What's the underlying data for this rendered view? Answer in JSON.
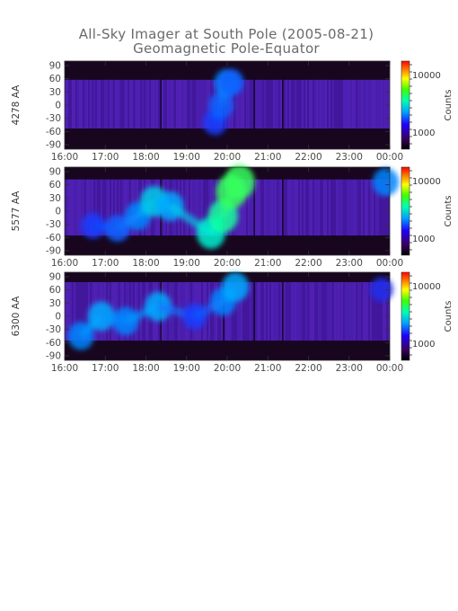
{
  "title": "All-Sky Imager at South Pole (2005-08-21)",
  "subtitle": "Geomagnetic Pole-Equator",
  "colorbar_label": "Counts",
  "colorbar_ticks": [
    "10000",
    "1000"
  ],
  "x_tick_labels": [
    "16:00",
    "17:00",
    "18:00",
    "19:00",
    "20:00",
    "21:00",
    "22:00",
    "23:00",
    "00:00"
  ],
  "y_tick_labels": [
    "90",
    "60",
    "30",
    "0",
    "-30",
    "-60",
    "-90"
  ],
  "chart_data": [
    {
      "type": "heatmap",
      "ylabel": "4278 AA",
      "x_range": [
        "16:00",
        "00:00"
      ],
      "ylim": [
        -90,
        90
      ],
      "colorbar": {
        "label": "Counts",
        "scale": "log",
        "ticks": [
          1000,
          10000
        ]
      },
      "band_edges": [
        {
          "time": 16.0,
          "upper": 52,
          "lower": -48
        },
        {
          "time": 20.0,
          "upper": 52,
          "lower": -48
        },
        {
          "time": 24.0,
          "upper": 52,
          "lower": -48
        }
      ],
      "features": [
        {
          "time": 19.7,
          "lat": -35,
          "intensity": 0.45
        },
        {
          "time": 19.85,
          "lat": 0,
          "intensity": 0.5
        },
        {
          "time": 20.0,
          "lat": 45,
          "intensity": 0.55
        },
        {
          "time": 20.1,
          "lat": 60,
          "intensity": 0.5
        }
      ]
    },
    {
      "type": "heatmap",
      "ylabel": "5577 AA",
      "x_range": [
        "16:00",
        "00:00"
      ],
      "ylim": [
        -90,
        90
      ],
      "colorbar": {
        "label": "Counts",
        "scale": "log",
        "ticks": [
          1000,
          10000
        ]
      },
      "band_edges": [
        {
          "time": 16.0,
          "upper": 65,
          "lower": -50
        },
        {
          "time": 24.0,
          "upper": 65,
          "lower": -50
        }
      ],
      "features": [
        {
          "time": 16.7,
          "lat": -30,
          "intensity": 0.45
        },
        {
          "time": 17.3,
          "lat": -35,
          "intensity": 0.5
        },
        {
          "time": 17.8,
          "lat": -10,
          "intensity": 0.55
        },
        {
          "time": 18.2,
          "lat": 20,
          "intensity": 0.65
        },
        {
          "time": 18.6,
          "lat": 10,
          "intensity": 0.6
        },
        {
          "time": 19.6,
          "lat": -45,
          "intensity": 0.7
        },
        {
          "time": 19.9,
          "lat": -10,
          "intensity": 0.75
        },
        {
          "time": 20.1,
          "lat": 40,
          "intensity": 0.8
        },
        {
          "time": 20.3,
          "lat": 60,
          "intensity": 0.8
        },
        {
          "time": 23.9,
          "lat": 60,
          "intensity": 0.55
        }
      ]
    },
    {
      "type": "heatmap",
      "ylabel": "6300 AA",
      "x_range": [
        "16:00",
        "00:00"
      ],
      "ylim": [
        -90,
        90
      ],
      "colorbar": {
        "label": "Counts",
        "scale": "log",
        "ticks": [
          1000,
          10000
        ]
      },
      "band_edges": [
        {
          "time": 16.0,
          "upper": 70,
          "lower": -50
        },
        {
          "time": 24.0,
          "upper": 70,
          "lower": -50
        }
      ],
      "features": [
        {
          "time": 16.4,
          "lat": -40,
          "intensity": 0.55
        },
        {
          "time": 16.9,
          "lat": 0,
          "intensity": 0.6
        },
        {
          "time": 17.5,
          "lat": -10,
          "intensity": 0.55
        },
        {
          "time": 18.3,
          "lat": 20,
          "intensity": 0.6
        },
        {
          "time": 19.2,
          "lat": 0,
          "intensity": 0.45
        },
        {
          "time": 19.9,
          "lat": 30,
          "intensity": 0.55
        },
        {
          "time": 20.2,
          "lat": 60,
          "intensity": 0.6
        },
        {
          "time": 23.8,
          "lat": 55,
          "intensity": 0.4
        }
      ]
    }
  ]
}
